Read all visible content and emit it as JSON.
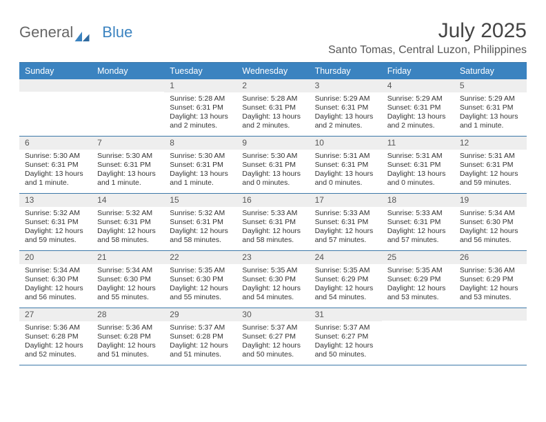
{
  "logo": {
    "text_general": "General",
    "text_blue": "Blue"
  },
  "header": {
    "month_title": "July 2025",
    "location": "Santo Tomas, Central Luzon, Philippines"
  },
  "colors": {
    "header_bg": "#3b83c0",
    "header_text": "#ffffff",
    "rule": "#3b77a8",
    "daynum_bg": "#eeeeee",
    "body_text": "#333333"
  },
  "dayhead": [
    "Sunday",
    "Monday",
    "Tuesday",
    "Wednesday",
    "Thursday",
    "Friday",
    "Saturday"
  ],
  "weeks": [
    [
      {
        "empty": true
      },
      {
        "empty": true
      },
      {
        "day": "1",
        "sunrise": "Sunrise: 5:28 AM",
        "sunset": "Sunset: 6:31 PM",
        "daylight": "Daylight: 13 hours and 2 minutes."
      },
      {
        "day": "2",
        "sunrise": "Sunrise: 5:28 AM",
        "sunset": "Sunset: 6:31 PM",
        "daylight": "Daylight: 13 hours and 2 minutes."
      },
      {
        "day": "3",
        "sunrise": "Sunrise: 5:29 AM",
        "sunset": "Sunset: 6:31 PM",
        "daylight": "Daylight: 13 hours and 2 minutes."
      },
      {
        "day": "4",
        "sunrise": "Sunrise: 5:29 AM",
        "sunset": "Sunset: 6:31 PM",
        "daylight": "Daylight: 13 hours and 2 minutes."
      },
      {
        "day": "5",
        "sunrise": "Sunrise: 5:29 AM",
        "sunset": "Sunset: 6:31 PM",
        "daylight": "Daylight: 13 hours and 1 minute."
      }
    ],
    [
      {
        "day": "6",
        "sunrise": "Sunrise: 5:30 AM",
        "sunset": "Sunset: 6:31 PM",
        "daylight": "Daylight: 13 hours and 1 minute."
      },
      {
        "day": "7",
        "sunrise": "Sunrise: 5:30 AM",
        "sunset": "Sunset: 6:31 PM",
        "daylight": "Daylight: 13 hours and 1 minute."
      },
      {
        "day": "8",
        "sunrise": "Sunrise: 5:30 AM",
        "sunset": "Sunset: 6:31 PM",
        "daylight": "Daylight: 13 hours and 1 minute."
      },
      {
        "day": "9",
        "sunrise": "Sunrise: 5:30 AM",
        "sunset": "Sunset: 6:31 PM",
        "daylight": "Daylight: 13 hours and 0 minutes."
      },
      {
        "day": "10",
        "sunrise": "Sunrise: 5:31 AM",
        "sunset": "Sunset: 6:31 PM",
        "daylight": "Daylight: 13 hours and 0 minutes."
      },
      {
        "day": "11",
        "sunrise": "Sunrise: 5:31 AM",
        "sunset": "Sunset: 6:31 PM",
        "daylight": "Daylight: 13 hours and 0 minutes."
      },
      {
        "day": "12",
        "sunrise": "Sunrise: 5:31 AM",
        "sunset": "Sunset: 6:31 PM",
        "daylight": "Daylight: 12 hours and 59 minutes."
      }
    ],
    [
      {
        "day": "13",
        "sunrise": "Sunrise: 5:32 AM",
        "sunset": "Sunset: 6:31 PM",
        "daylight": "Daylight: 12 hours and 59 minutes."
      },
      {
        "day": "14",
        "sunrise": "Sunrise: 5:32 AM",
        "sunset": "Sunset: 6:31 PM",
        "daylight": "Daylight: 12 hours and 58 minutes."
      },
      {
        "day": "15",
        "sunrise": "Sunrise: 5:32 AM",
        "sunset": "Sunset: 6:31 PM",
        "daylight": "Daylight: 12 hours and 58 minutes."
      },
      {
        "day": "16",
        "sunrise": "Sunrise: 5:33 AM",
        "sunset": "Sunset: 6:31 PM",
        "daylight": "Daylight: 12 hours and 58 minutes."
      },
      {
        "day": "17",
        "sunrise": "Sunrise: 5:33 AM",
        "sunset": "Sunset: 6:31 PM",
        "daylight": "Daylight: 12 hours and 57 minutes."
      },
      {
        "day": "18",
        "sunrise": "Sunrise: 5:33 AM",
        "sunset": "Sunset: 6:31 PM",
        "daylight": "Daylight: 12 hours and 57 minutes."
      },
      {
        "day": "19",
        "sunrise": "Sunrise: 5:34 AM",
        "sunset": "Sunset: 6:30 PM",
        "daylight": "Daylight: 12 hours and 56 minutes."
      }
    ],
    [
      {
        "day": "20",
        "sunrise": "Sunrise: 5:34 AM",
        "sunset": "Sunset: 6:30 PM",
        "daylight": "Daylight: 12 hours and 56 minutes."
      },
      {
        "day": "21",
        "sunrise": "Sunrise: 5:34 AM",
        "sunset": "Sunset: 6:30 PM",
        "daylight": "Daylight: 12 hours and 55 minutes."
      },
      {
        "day": "22",
        "sunrise": "Sunrise: 5:35 AM",
        "sunset": "Sunset: 6:30 PM",
        "daylight": "Daylight: 12 hours and 55 minutes."
      },
      {
        "day": "23",
        "sunrise": "Sunrise: 5:35 AM",
        "sunset": "Sunset: 6:30 PM",
        "daylight": "Daylight: 12 hours and 54 minutes."
      },
      {
        "day": "24",
        "sunrise": "Sunrise: 5:35 AM",
        "sunset": "Sunset: 6:29 PM",
        "daylight": "Daylight: 12 hours and 54 minutes."
      },
      {
        "day": "25",
        "sunrise": "Sunrise: 5:35 AM",
        "sunset": "Sunset: 6:29 PM",
        "daylight": "Daylight: 12 hours and 53 minutes."
      },
      {
        "day": "26",
        "sunrise": "Sunrise: 5:36 AM",
        "sunset": "Sunset: 6:29 PM",
        "daylight": "Daylight: 12 hours and 53 minutes."
      }
    ],
    [
      {
        "day": "27",
        "sunrise": "Sunrise: 5:36 AM",
        "sunset": "Sunset: 6:28 PM",
        "daylight": "Daylight: 12 hours and 52 minutes."
      },
      {
        "day": "28",
        "sunrise": "Sunrise: 5:36 AM",
        "sunset": "Sunset: 6:28 PM",
        "daylight": "Daylight: 12 hours and 51 minutes."
      },
      {
        "day": "29",
        "sunrise": "Sunrise: 5:37 AM",
        "sunset": "Sunset: 6:28 PM",
        "daylight": "Daylight: 12 hours and 51 minutes."
      },
      {
        "day": "30",
        "sunrise": "Sunrise: 5:37 AM",
        "sunset": "Sunset: 6:27 PM",
        "daylight": "Daylight: 12 hours and 50 minutes."
      },
      {
        "day": "31",
        "sunrise": "Sunrise: 5:37 AM",
        "sunset": "Sunset: 6:27 PM",
        "daylight": "Daylight: 12 hours and 50 minutes."
      },
      {
        "empty": true
      },
      {
        "empty": true
      }
    ]
  ]
}
